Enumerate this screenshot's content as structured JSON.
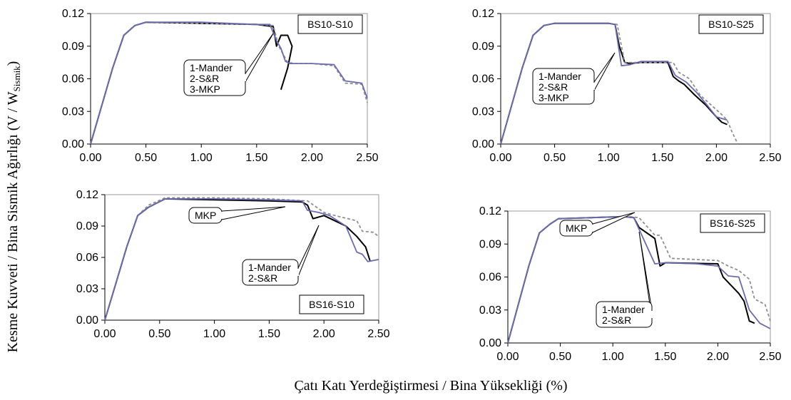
{
  "figure": {
    "xlabel": "Çatı Katı Yerdeğiştirmesi / Bina Yüksekliği (%)",
    "ylabel_main": "Kesme Kuvveti / Bina Sismik Ağırlığı (V / W",
    "ylabel_sub": "Sismik",
    "ylabel_close": ")"
  },
  "chart_data": [
    {
      "type": "line",
      "title": "BS10-S10",
      "xlim": [
        0,
        2.5
      ],
      "ylim": [
        0,
        0.12
      ],
      "xticks": [
        "0.00",
        "0.50",
        "1.00",
        "1.50",
        "2.00",
        "2.50"
      ],
      "yticks": [
        "0.00",
        "0.03",
        "0.06",
        "0.09",
        "0.12"
      ],
      "annotation": [
        "1-Mander",
        "2-S&R",
        "3-MKP"
      ],
      "series": [
        {
          "color": "#000000",
          "x": [
            0,
            0.1,
            0.2,
            0.3,
            0.4,
            0.5,
            1.0,
            1.5,
            1.65,
            1.68,
            1.72,
            1.78,
            1.82,
            1.78,
            1.72
          ],
          "y": [
            0,
            0.035,
            0.07,
            0.1,
            0.109,
            0.112,
            0.111,
            0.11,
            0.108,
            0.09,
            0.1,
            0.1,
            0.09,
            0.07,
            0.05
          ]
        },
        {
          "color": "#8f8f8f",
          "dash": true,
          "x": [
            0,
            0.1,
            0.2,
            0.3,
            0.4,
            0.5,
            1.0,
            1.5,
            1.65,
            1.7,
            1.78,
            1.85,
            2.0,
            2.2,
            2.3,
            2.45,
            2.5
          ],
          "y": [
            0,
            0.035,
            0.07,
            0.1,
            0.109,
            0.112,
            0.111,
            0.11,
            0.109,
            0.09,
            0.075,
            0.074,
            0.074,
            0.072,
            0.056,
            0.055,
            0.038
          ]
        },
        {
          "color": "#6b6bb0",
          "x": [
            0,
            0.1,
            0.2,
            0.3,
            0.4,
            0.5,
            1.0,
            1.5,
            1.62,
            1.68,
            1.72,
            1.76,
            1.8,
            2.0,
            2.2,
            2.3,
            2.45,
            2.5
          ],
          "y": [
            0,
            0.035,
            0.07,
            0.1,
            0.109,
            0.112,
            0.112,
            0.11,
            0.11,
            0.095,
            0.088,
            0.076,
            0.074,
            0.074,
            0.073,
            0.058,
            0.056,
            0.042
          ]
        }
      ]
    },
    {
      "type": "line",
      "title": "BS10-S25",
      "xlim": [
        0,
        2.5
      ],
      "ylim": [
        0,
        0.12
      ],
      "xticks": [
        "0.00",
        "0.50",
        "1.00",
        "1.50",
        "2.00",
        "2.50"
      ],
      "yticks": [
        "0.00",
        "0.03",
        "0.06",
        "0.09",
        "0.12"
      ],
      "annotation": [
        "1-Mander",
        "2-S&R",
        "3-MKP"
      ],
      "series": [
        {
          "color": "#000000",
          "x": [
            0,
            0.1,
            0.2,
            0.3,
            0.4,
            0.5,
            1.0,
            1.06,
            1.1,
            1.15,
            1.2,
            1.3,
            1.55,
            1.6,
            1.65,
            1.7,
            1.8,
            1.9,
            2.0,
            2.05,
            2.1
          ],
          "y": [
            0,
            0.035,
            0.07,
            0.1,
            0.109,
            0.111,
            0.111,
            0.11,
            0.09,
            0.075,
            0.074,
            0.075,
            0.075,
            0.062,
            0.058,
            0.055,
            0.045,
            0.036,
            0.025,
            0.02,
            0.018
          ]
        },
        {
          "color": "#8f8f8f",
          "dash": true,
          "x": [
            0,
            0.1,
            0.2,
            0.3,
            0.4,
            0.5,
            1.0,
            1.08,
            1.15,
            1.3,
            1.6,
            1.65,
            1.75,
            1.85,
            1.95,
            2.05,
            2.1,
            2.15,
            2.2
          ],
          "y": [
            0,
            0.035,
            0.07,
            0.1,
            0.109,
            0.111,
            0.111,
            0.11,
            0.075,
            0.075,
            0.075,
            0.066,
            0.06,
            0.045,
            0.036,
            0.027,
            0.022,
            0.01,
            0.0
          ]
        },
        {
          "color": "#6b6bb0",
          "x": [
            0,
            0.1,
            0.2,
            0.3,
            0.4,
            0.5,
            1.0,
            1.06,
            1.12,
            1.2,
            1.3,
            1.55,
            1.62,
            1.72,
            1.82,
            1.92,
            2.0,
            2.1
          ],
          "y": [
            0,
            0.035,
            0.07,
            0.1,
            0.109,
            0.111,
            0.111,
            0.11,
            0.072,
            0.073,
            0.076,
            0.076,
            0.063,
            0.057,
            0.047,
            0.035,
            0.025,
            0.022
          ]
        }
      ]
    },
    {
      "type": "line",
      "title": "BS16-S10",
      "xlim": [
        0,
        2.5
      ],
      "ylim": [
        0,
        0.12
      ],
      "xticks": [
        "0.00",
        "0.50",
        "1.00",
        "1.50",
        "2.00",
        "2.50"
      ],
      "yticks": [
        "0.00",
        "0.03",
        "0.06",
        "0.09",
        "0.12"
      ],
      "annotation": [
        "1-Mander",
        "2-S&R"
      ],
      "annotation2": [
        "MKP"
      ],
      "series": [
        {
          "color": "#000000",
          "x": [
            0,
            0.1,
            0.2,
            0.3,
            0.4,
            0.55,
            1.0,
            1.5,
            1.8,
            1.85,
            1.9,
            2.0,
            2.1,
            2.2,
            2.3,
            2.38,
            2.42
          ],
          "y": [
            0,
            0.035,
            0.07,
            0.1,
            0.108,
            0.116,
            0.115,
            0.114,
            0.113,
            0.11,
            0.097,
            0.1,
            0.095,
            0.09,
            0.08,
            0.07,
            0.057
          ]
        },
        {
          "color": "#8f8f8f",
          "dash": true,
          "x": [
            0,
            0.1,
            0.2,
            0.3,
            0.4,
            0.55,
            1.0,
            1.5,
            1.85,
            2.0,
            2.1,
            2.3,
            2.35,
            2.45,
            2.5
          ],
          "y": [
            0,
            0.035,
            0.07,
            0.1,
            0.11,
            0.117,
            0.117,
            0.116,
            0.114,
            0.103,
            0.1,
            0.095,
            0.085,
            0.084,
            0.08
          ]
        },
        {
          "color": "#6b6bb0",
          "x": [
            0,
            0.1,
            0.2,
            0.3,
            0.4,
            0.55,
            1.0,
            1.5,
            1.8,
            1.85,
            1.95,
            2.05,
            2.2,
            2.3,
            2.35,
            2.4,
            2.5
          ],
          "y": [
            0,
            0.035,
            0.07,
            0.1,
            0.108,
            0.116,
            0.116,
            0.115,
            0.114,
            0.105,
            0.103,
            0.1,
            0.09,
            0.065,
            0.063,
            0.056,
            0.058
          ]
        }
      ]
    },
    {
      "type": "line",
      "title": "BS16-S25",
      "xlim": [
        0,
        2.5
      ],
      "ylim": [
        0,
        0.12
      ],
      "xticks": [
        "0.00",
        "0.50",
        "1.00",
        "1.50",
        "2.00",
        "2.50"
      ],
      "yticks": [
        "0.00",
        "0.03",
        "0.06",
        "0.09",
        "0.12"
      ],
      "annotation": [
        "1-Mander",
        "2-S&R"
      ],
      "annotation2": [
        "MKP"
      ],
      "series": [
        {
          "color": "#000000",
          "x": [
            0,
            0.1,
            0.2,
            0.3,
            0.4,
            0.48,
            1.1,
            1.2,
            1.25,
            1.4,
            1.45,
            1.5,
            2.0,
            2.05,
            2.1,
            2.2,
            2.25,
            2.3,
            2.35
          ],
          "y": [
            0,
            0.035,
            0.07,
            0.1,
            0.108,
            0.113,
            0.115,
            0.114,
            0.105,
            0.095,
            0.07,
            0.073,
            0.072,
            0.06,
            0.055,
            0.045,
            0.038,
            0.02,
            0.018
          ]
        },
        {
          "color": "#8f8f8f",
          "dash": true,
          "x": [
            0,
            0.1,
            0.2,
            0.3,
            0.4,
            0.48,
            1.15,
            1.25,
            1.4,
            1.45,
            1.55,
            2.0,
            2.1,
            2.2,
            2.3,
            2.35,
            2.45,
            2.5
          ],
          "y": [
            0,
            0.035,
            0.07,
            0.1,
            0.108,
            0.113,
            0.115,
            0.114,
            0.098,
            0.098,
            0.077,
            0.075,
            0.07,
            0.066,
            0.058,
            0.04,
            0.035,
            0.02
          ]
        },
        {
          "color": "#6b6bb0",
          "x": [
            0,
            0.1,
            0.2,
            0.3,
            0.4,
            0.48,
            1.1,
            1.2,
            1.4,
            1.5,
            1.8,
            2.0,
            2.1,
            2.2,
            2.3,
            2.4,
            2.5
          ],
          "y": [
            0,
            0.035,
            0.07,
            0.1,
            0.108,
            0.113,
            0.115,
            0.114,
            0.072,
            0.073,
            0.072,
            0.07,
            0.061,
            0.06,
            0.03,
            0.018,
            0.013
          ]
        }
      ]
    }
  ]
}
